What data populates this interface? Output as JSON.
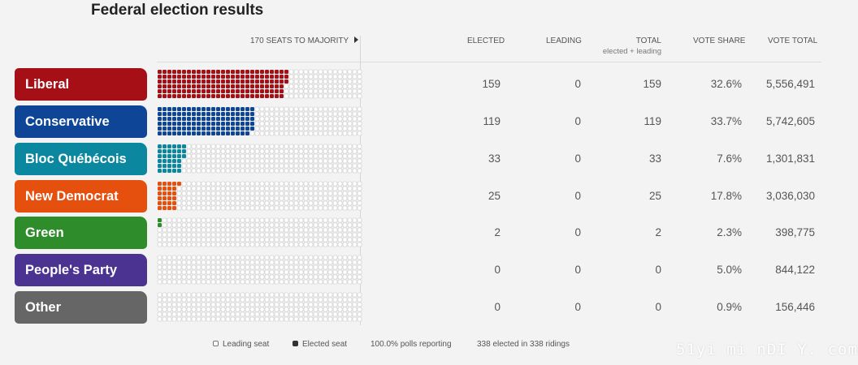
{
  "title": "Federal election results",
  "header": {
    "majority": "170 SEATS TO MAJORITY",
    "elected": "ELECTED",
    "leading": "LEADING",
    "total": "TOTAL",
    "total_sub": "elected + leading",
    "vote_share": "VOTE SHARE",
    "vote_total": "VOTE TOTAL"
  },
  "parties": [
    {
      "name": "Liberal",
      "color": "#a50f15",
      "elected": "159",
      "leading": "0",
      "total": "159",
      "vote_share": "32.6%",
      "vote_total": "5,556,491"
    },
    {
      "name": "Conservative",
      "color": "#0e4597",
      "elected": "119",
      "leading": "0",
      "total": "119",
      "vote_share": "33.7%",
      "vote_total": "5,742,605"
    },
    {
      "name": "Bloc Québécois",
      "color": "#0b88a0",
      "elected": "33",
      "leading": "0",
      "total": "33",
      "vote_share": "7.6%",
      "vote_total": "1,301,831"
    },
    {
      "name": "New Democrat",
      "color": "#e5500f",
      "elected": "25",
      "leading": "0",
      "total": "25",
      "vote_share": "17.8%",
      "vote_total": "3,036,030"
    },
    {
      "name": "Green",
      "color": "#2e8c2b",
      "elected": "2",
      "leading": "0",
      "total": "2",
      "vote_share": "2.3%",
      "vote_total": "398,775"
    },
    {
      "name": "People's Party",
      "color": "#4a3391",
      "elected": "0",
      "leading": "0",
      "total": "0",
      "vote_share": "5.0%",
      "vote_total": "844,122"
    },
    {
      "name": "Other",
      "color": "#666666",
      "elected": "0",
      "leading": "0",
      "total": "0",
      "vote_share": "0.9%",
      "vote_total": "156,446"
    }
  ],
  "seat_grid": {
    "majority_seats": 170,
    "empty_outline_color": "#c8c8c8"
  },
  "footer": {
    "leading_seat": "Leading seat",
    "elected_seat": "Elected seat",
    "polls_reporting": "100.0% polls reporting",
    "ridings": "338 elected in 338 ridings"
  },
  "watermark": "51yi mi nDI Y. com"
}
